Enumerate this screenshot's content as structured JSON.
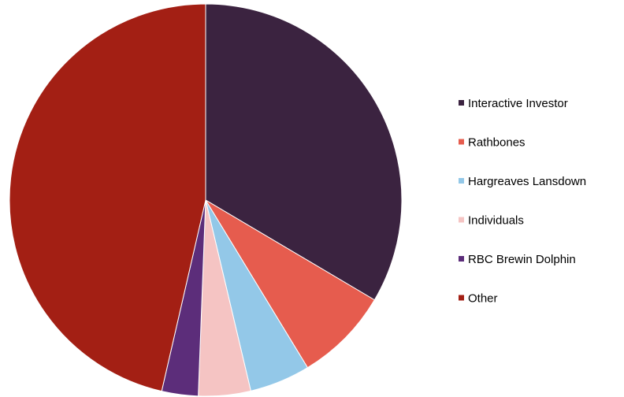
{
  "chart_data": {
    "type": "pie",
    "title": "",
    "start_angle_deg": 0,
    "direction": "clockwise",
    "legend_position": "right",
    "slices": [
      {
        "label": "Interactive Investor",
        "value": 33.5,
        "color": "#3B2340"
      },
      {
        "label": "Rathbones",
        "value": 7.8,
        "color": "#E65C4E"
      },
      {
        "label": "Hargreaves Lansdown",
        "value": 5.0,
        "color": "#93C8E8"
      },
      {
        "label": "Individuals",
        "value": 4.3,
        "color": "#F5C4C3"
      },
      {
        "label": "RBC Brewin Dolphin",
        "value": 3.0,
        "color": "#5C2D7A"
      },
      {
        "label": "Other",
        "value": 46.4,
        "color": "#A31F14"
      }
    ]
  }
}
